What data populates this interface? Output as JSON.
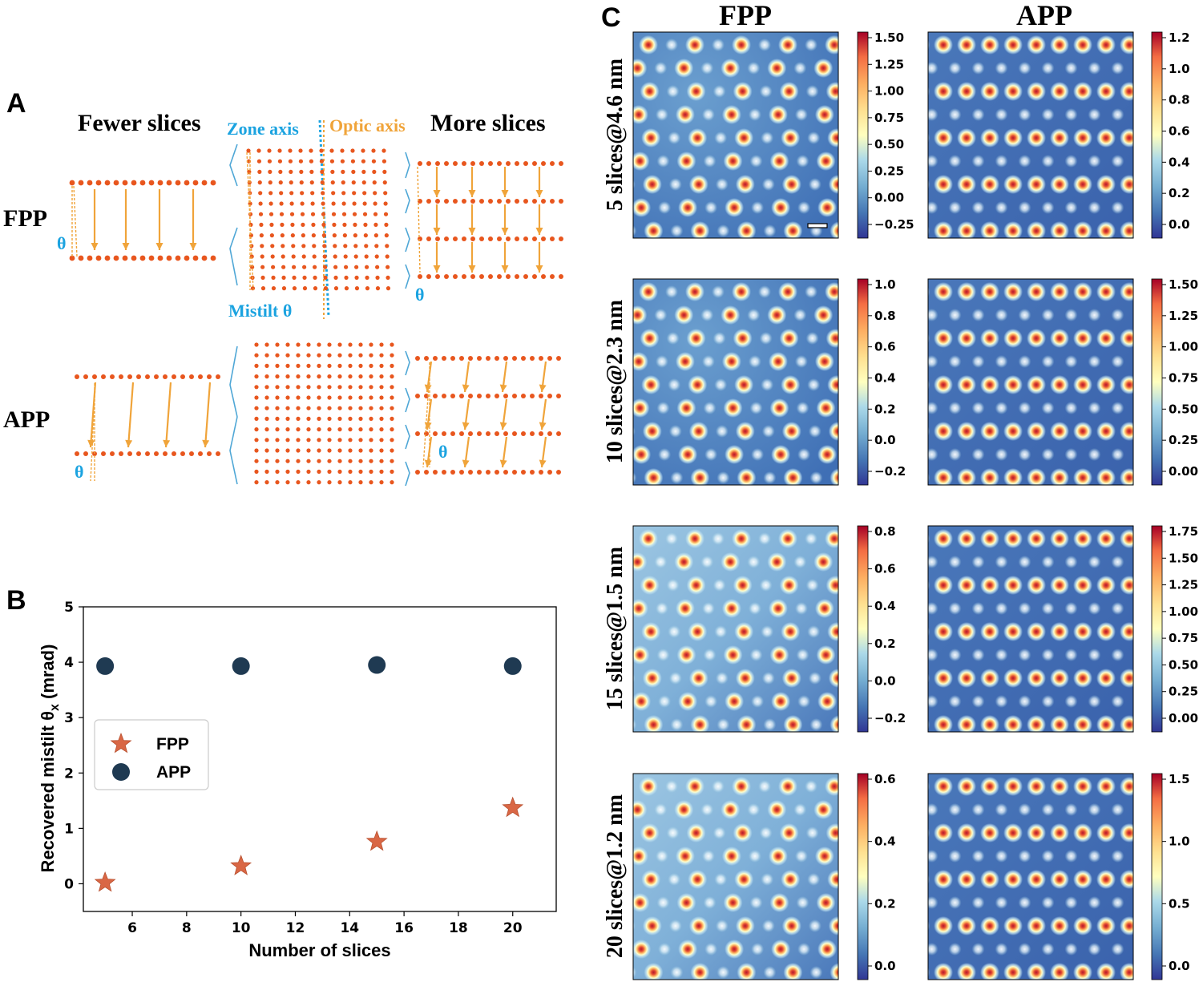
{
  "colors": {
    "dot": "#e8561e",
    "arrow": "#f0a43a",
    "zone": "#1ba3e0",
    "optic": "#f0a43a",
    "theta": "#1ba3e0",
    "fpp_marker": "#d96745",
    "app_marker": "#1f3a52"
  },
  "panel_a": {
    "letter": "A",
    "fewer_slices": "Fewer slices",
    "more_slices": "More slices",
    "zone_axis": "Zone axis",
    "optic_axis": "Optic axis",
    "mistilt": "Mistilt θ",
    "theta": "θ",
    "row_fpp": "FPP",
    "row_app": "APP"
  },
  "panel_b": {
    "letter": "B"
  },
  "panel_c": {
    "letter": "C",
    "col_fpp": "FPP",
    "col_app": "APP",
    "rows": [
      {
        "label": "5 slices@4.6 nm",
        "fpp_ticks": [
          "1.50",
          "1.25",
          "1.00",
          "0.75",
          "0.50",
          "0.25",
          "0.00",
          "−0.25"
        ],
        "app_ticks": [
          "1.2",
          "1.0",
          "0.8",
          "0.6",
          "0.4",
          "0.2",
          "0.0"
        ]
      },
      {
        "label": "10 slices@2.3 nm",
        "fpp_ticks": [
          "1.0",
          "0.8",
          "0.6",
          "0.4",
          "0.2",
          "0.0",
          "−0.2"
        ],
        "app_ticks": [
          "1.50",
          "1.25",
          "1.00",
          "0.75",
          "0.50",
          "0.25",
          "0.00"
        ]
      },
      {
        "label": "15 slices@1.5 nm",
        "fpp_ticks": [
          "0.8",
          "0.6",
          "0.4",
          "0.2",
          "0.0",
          "−0.2"
        ],
        "app_ticks": [
          "1.75",
          "1.50",
          "1.25",
          "1.00",
          "0.75",
          "0.50",
          "0.25",
          "0.00"
        ]
      },
      {
        "label": "20 slices@1.2 nm",
        "fpp_ticks": [
          "0.6",
          "0.4",
          "0.2",
          "0.0"
        ],
        "app_ticks": [
          "1.5",
          "1.0",
          "0.5",
          "0.0"
        ]
      }
    ]
  },
  "chart_data": {
    "type": "scatter",
    "xlabel": "Number of slices",
    "ylabel": "Recovered mistilt θ",
    "ylabel_sub": "x",
    "ylabel_unit": " (mrad)",
    "xlim": [
      4.2,
      21.6
    ],
    "ylim": [
      -0.5,
      5
    ],
    "xticks": [
      6,
      8,
      10,
      12,
      14,
      16,
      18,
      20
    ],
    "yticks": [
      0,
      1,
      2,
      3,
      4,
      5
    ],
    "grid": false,
    "legend_position": "center-left",
    "series": [
      {
        "name": "FPP",
        "marker": "star",
        "x": [
          5,
          10,
          15,
          20
        ],
        "y": [
          0.02,
          0.32,
          0.76,
          1.37
        ]
      },
      {
        "name": "APP",
        "marker": "circle",
        "x": [
          5,
          10,
          15,
          20
        ],
        "y": [
          3.93,
          3.93,
          3.95,
          3.93
        ]
      }
    ]
  }
}
